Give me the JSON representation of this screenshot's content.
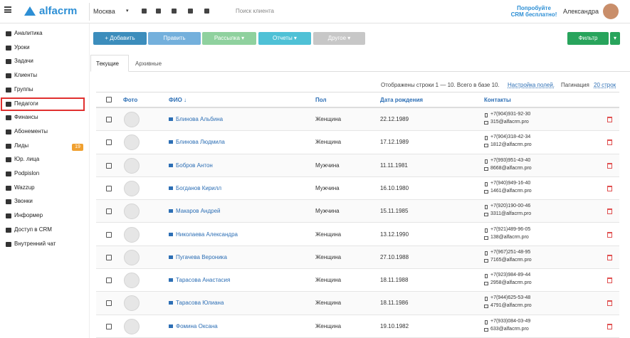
{
  "header": {
    "logo": "alfacrm",
    "city": "Москва",
    "search_placeholder": "Поиск клиента",
    "promo": [
      "Попробуйте",
      "CRM бесплатно!"
    ],
    "user": "Александра"
  },
  "sidebar": {
    "items": [
      "Аналитика",
      "Уроки",
      "Задачи",
      "Клиенты",
      "Группы",
      "Педагоги",
      "Финансы",
      "Абонементы",
      "Лиды",
      "Юр. лица",
      "Podpislon",
      "Wazzup",
      "Звонки",
      "Информер",
      "Доступ в CRM",
      "Внутренний чат"
    ],
    "leads_badge": "19"
  },
  "toolbar": {
    "buttons": [
      "+ Добавить",
      "Править",
      "Рассылка",
      "Отчеты",
      "Другое"
    ],
    "filter": "Фильтр"
  },
  "tabs": [
    "Текущие",
    "Архивные"
  ],
  "info": {
    "text": "Отображены строки 1 — 10. Всего в базе 10.",
    "fields_link": "Настройка полей.",
    "pagination": "Пагинация",
    "rows_link": "20 строк"
  },
  "table": {
    "columns": [
      "Фото",
      "ФИО ↓",
      "Пол",
      "Дата рождения",
      "Контакты"
    ],
    "rows": [
      [
        "Блинова Альбина",
        "Женщина",
        "22.12.1989",
        "+7(904)931-92-30",
        "315@alfacrm.pro"
      ],
      [
        "Блинова Людмила",
        "Женщина",
        "17.12.1989",
        "+7(904)318-42-34",
        "1812@alfacrm.pro"
      ],
      [
        "Бобров Антон",
        "Мужчина",
        "11.11.1981",
        "+7(993)951-43-40",
        "8668@alfacrm.pro"
      ],
      [
        "Богданов Кирилл",
        "Мужчина",
        "16.10.1980",
        "+7(940)949-16-40",
        "1461@alfacrm.pro"
      ],
      [
        "Макаров Андрей",
        "Мужчина",
        "15.11.1985",
        "+7(920)190-00-46",
        "3311@alfacrm.pro"
      ],
      [
        "Николаева Александра",
        "Женщина",
        "13.12.1990",
        "+7(921)489-96-05",
        "138@alfacrm.pro"
      ],
      [
        "Пугачева Вероника",
        "Женщина",
        "27.10.1988",
        "+7(967)251-48-95",
        "7165@alfacrm.pro"
      ],
      [
        "Тарасова Анастасия",
        "Женщина",
        "18.11.1988",
        "+7(923)984-89-44",
        "2958@alfacrm.pro"
      ],
      [
        "Тарасова Юлиана",
        "Женщина",
        "18.11.1986",
        "+7(944)625-53-48",
        "4791@alfacrm.pro"
      ],
      [
        "Фомина Оксана",
        "Женщина",
        "19.10.1982",
        "+7(933)084-03-49",
        "633@alfacrm.pro"
      ]
    ]
  }
}
